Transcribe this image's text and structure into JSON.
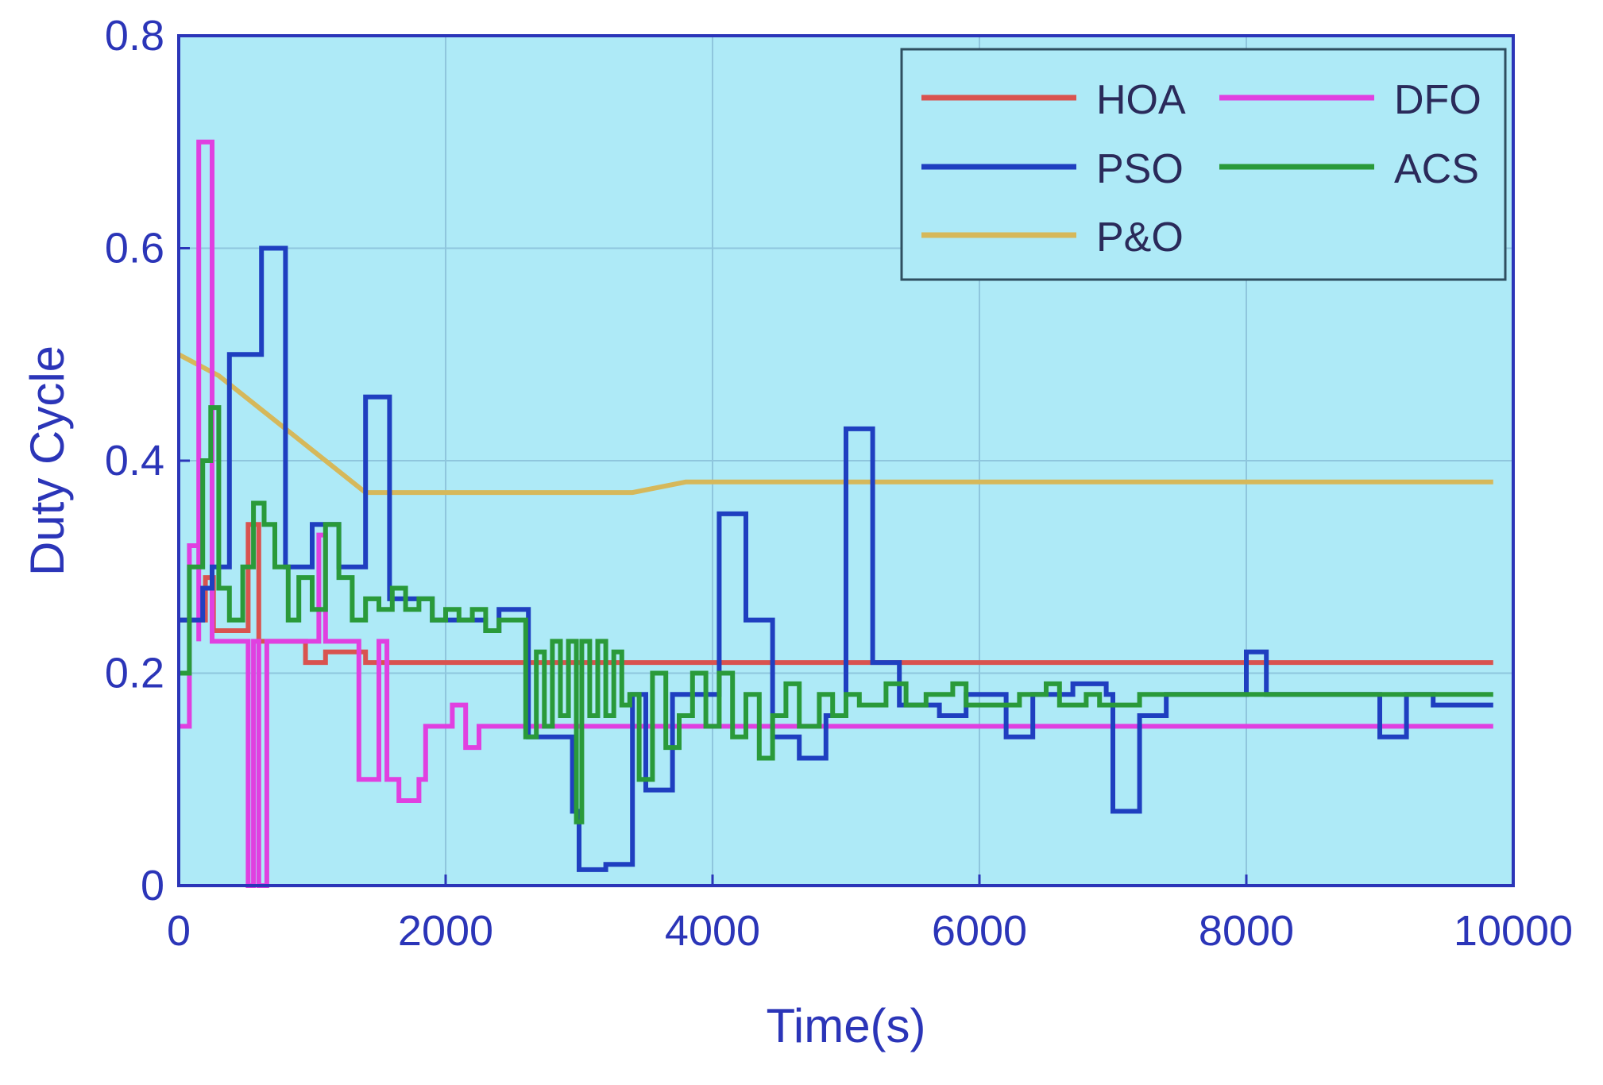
{
  "chart_data": {
    "type": "line",
    "title": "",
    "xlabel": "Time(s)",
    "ylabel": "Duty Cycle",
    "xlim": [
      0,
      10000
    ],
    "ylim": [
      0,
      0.8
    ],
    "xticks": [
      0,
      2000,
      4000,
      6000,
      8000,
      10000
    ],
    "xtick_labels": [
      "0",
      "2000",
      "4000",
      "6000",
      "8000",
      "10000"
    ],
    "yticks": [
      0,
      0.2,
      0.4,
      0.6,
      0.8
    ],
    "ytick_labels": [
      "0",
      "0.2",
      "0.4",
      "0.6",
      "0.8"
    ],
    "grid": true,
    "legend_position": "top-right",
    "background_color": "#aeeaf7",
    "axis_color": "#2b35b8",
    "series": [
      {
        "name": "HOA",
        "color": "#d9534f",
        "points": [
          [
            0,
            0.25
          ],
          [
            200,
            0.25
          ],
          [
            200,
            0.29
          ],
          [
            260,
            0.29
          ],
          [
            260,
            0.24
          ],
          [
            520,
            0.24
          ],
          [
            520,
            0.34
          ],
          [
            600,
            0.34
          ],
          [
            600,
            0.23
          ],
          [
            950,
            0.23
          ],
          [
            950,
            0.21
          ],
          [
            1100,
            0.21
          ],
          [
            1100,
            0.22
          ],
          [
            1400,
            0.22
          ],
          [
            1400,
            0.21
          ],
          [
            9850,
            0.21
          ]
        ]
      },
      {
        "name": "PSO",
        "color": "#1f3fc0",
        "points": [
          [
            0,
            0.25
          ],
          [
            180,
            0.25
          ],
          [
            180,
            0.28
          ],
          [
            250,
            0.28
          ],
          [
            250,
            0.3
          ],
          [
            380,
            0.3
          ],
          [
            380,
            0.5
          ],
          [
            620,
            0.5
          ],
          [
            620,
            0.6
          ],
          [
            800,
            0.6
          ],
          [
            800,
            0.3
          ],
          [
            1000,
            0.3
          ],
          [
            1000,
            0.34
          ],
          [
            1200,
            0.34
          ],
          [
            1200,
            0.3
          ],
          [
            1400,
            0.3
          ],
          [
            1400,
            0.46
          ],
          [
            1580,
            0.46
          ],
          [
            1580,
            0.27
          ],
          [
            1900,
            0.27
          ],
          [
            1900,
            0.25
          ],
          [
            2300,
            0.25
          ],
          [
            2300,
            0.24
          ],
          [
            2400,
            0.24
          ],
          [
            2400,
            0.26
          ],
          [
            2620,
            0.26
          ],
          [
            2620,
            0.14
          ],
          [
            2950,
            0.14
          ],
          [
            2950,
            0.07
          ],
          [
            3000,
            0.07
          ],
          [
            3000,
            0.015
          ],
          [
            3200,
            0.015
          ],
          [
            3200,
            0.02
          ],
          [
            3400,
            0.02
          ],
          [
            3400,
            0.18
          ],
          [
            3500,
            0.18
          ],
          [
            3500,
            0.09
          ],
          [
            3700,
            0.09
          ],
          [
            3700,
            0.18
          ],
          [
            4050,
            0.18
          ],
          [
            4050,
            0.35
          ],
          [
            4250,
            0.35
          ],
          [
            4250,
            0.25
          ],
          [
            4450,
            0.25
          ],
          [
            4450,
            0.14
          ],
          [
            4650,
            0.14
          ],
          [
            4650,
            0.12
          ],
          [
            4850,
            0.12
          ],
          [
            4850,
            0.16
          ],
          [
            5000,
            0.16
          ],
          [
            5000,
            0.43
          ],
          [
            5200,
            0.43
          ],
          [
            5200,
            0.21
          ],
          [
            5400,
            0.21
          ],
          [
            5400,
            0.17
          ],
          [
            5700,
            0.17
          ],
          [
            5700,
            0.16
          ],
          [
            5900,
            0.16
          ],
          [
            5900,
            0.18
          ],
          [
            6200,
            0.18
          ],
          [
            6200,
            0.14
          ],
          [
            6400,
            0.14
          ],
          [
            6400,
            0.18
          ],
          [
            6700,
            0.18
          ],
          [
            6700,
            0.19
          ],
          [
            6950,
            0.19
          ],
          [
            6950,
            0.18
          ],
          [
            7000,
            0.18
          ],
          [
            7000,
            0.07
          ],
          [
            7200,
            0.07
          ],
          [
            7200,
            0.16
          ],
          [
            7400,
            0.16
          ],
          [
            7400,
            0.18
          ],
          [
            8000,
            0.18
          ],
          [
            8000,
            0.22
          ],
          [
            8150,
            0.22
          ],
          [
            8150,
            0.18
          ],
          [
            9000,
            0.18
          ],
          [
            9000,
            0.14
          ],
          [
            9200,
            0.14
          ],
          [
            9200,
            0.18
          ],
          [
            9400,
            0.18
          ],
          [
            9400,
            0.17
          ],
          [
            9850,
            0.17
          ]
        ]
      },
      {
        "name": "P&O",
        "color": "#d6b85a",
        "points": [
          [
            0,
            0.5
          ],
          [
            300,
            0.48
          ],
          [
            600,
            0.45
          ],
          [
            1000,
            0.41
          ],
          [
            1400,
            0.37
          ],
          [
            2000,
            0.37
          ],
          [
            3400,
            0.37
          ],
          [
            3800,
            0.38
          ],
          [
            9850,
            0.38
          ]
        ]
      },
      {
        "name": "DFO",
        "color": "#e040e0",
        "points": [
          [
            0,
            0.15
          ],
          [
            80,
            0.15
          ],
          [
            80,
            0.32
          ],
          [
            150,
            0.32
          ],
          [
            150,
            0.23
          ],
          [
            150,
            0.7
          ],
          [
            250,
            0.7
          ],
          [
            250,
            0.23
          ],
          [
            520,
            0.23
          ],
          [
            520,
            0
          ],
          [
            560,
            0
          ],
          [
            560,
            0.23
          ],
          [
            600,
            0.23
          ],
          [
            600,
            0
          ],
          [
            660,
            0
          ],
          [
            660,
            0.23
          ],
          [
            1050,
            0.23
          ],
          [
            1050,
            0.33
          ],
          [
            1100,
            0.33
          ],
          [
            1100,
            0.23
          ],
          [
            1350,
            0.23
          ],
          [
            1350,
            0.1
          ],
          [
            1500,
            0.1
          ],
          [
            1500,
            0.23
          ],
          [
            1560,
            0.23
          ],
          [
            1560,
            0.1
          ],
          [
            1650,
            0.1
          ],
          [
            1650,
            0.08
          ],
          [
            1800,
            0.08
          ],
          [
            1800,
            0.1
          ],
          [
            1850,
            0.1
          ],
          [
            1850,
            0.15
          ],
          [
            2050,
            0.15
          ],
          [
            2050,
            0.17
          ],
          [
            2150,
            0.17
          ],
          [
            2150,
            0.13
          ],
          [
            2250,
            0.13
          ],
          [
            2250,
            0.15
          ],
          [
            9850,
            0.15
          ]
        ]
      },
      {
        "name": "ACS",
        "color": "#2a9a3a",
        "points": [
          [
            0,
            0.2
          ],
          [
            80,
            0.2
          ],
          [
            80,
            0.3
          ],
          [
            180,
            0.3
          ],
          [
            180,
            0.4
          ],
          [
            240,
            0.4
          ],
          [
            240,
            0.45
          ],
          [
            300,
            0.45
          ],
          [
            300,
            0.28
          ],
          [
            380,
            0.28
          ],
          [
            380,
            0.25
          ],
          [
            480,
            0.25
          ],
          [
            480,
            0.3
          ],
          [
            560,
            0.3
          ],
          [
            560,
            0.36
          ],
          [
            640,
            0.36
          ],
          [
            640,
            0.34
          ],
          [
            720,
            0.34
          ],
          [
            720,
            0.3
          ],
          [
            820,
            0.3
          ],
          [
            820,
            0.25
          ],
          [
            900,
            0.25
          ],
          [
            900,
            0.29
          ],
          [
            1000,
            0.29
          ],
          [
            1000,
            0.26
          ],
          [
            1100,
            0.26
          ],
          [
            1100,
            0.34
          ],
          [
            1200,
            0.34
          ],
          [
            1200,
            0.29
          ],
          [
            1300,
            0.29
          ],
          [
            1300,
            0.25
          ],
          [
            1400,
            0.25
          ],
          [
            1400,
            0.27
          ],
          [
            1500,
            0.27
          ],
          [
            1500,
            0.26
          ],
          [
            1600,
            0.26
          ],
          [
            1600,
            0.28
          ],
          [
            1700,
            0.28
          ],
          [
            1700,
            0.26
          ],
          [
            1800,
            0.26
          ],
          [
            1800,
            0.27
          ],
          [
            1900,
            0.27
          ],
          [
            1900,
            0.25
          ],
          [
            2000,
            0.25
          ],
          [
            2000,
            0.26
          ],
          [
            2100,
            0.26
          ],
          [
            2100,
            0.25
          ],
          [
            2200,
            0.25
          ],
          [
            2200,
            0.26
          ],
          [
            2300,
            0.26
          ],
          [
            2300,
            0.24
          ],
          [
            2400,
            0.24
          ],
          [
            2400,
            0.25
          ],
          [
            2600,
            0.25
          ],
          [
            2600,
            0.14
          ],
          [
            2680,
            0.14
          ],
          [
            2680,
            0.22
          ],
          [
            2740,
            0.22
          ],
          [
            2740,
            0.15
          ],
          [
            2800,
            0.15
          ],
          [
            2800,
            0.23
          ],
          [
            2860,
            0.23
          ],
          [
            2860,
            0.16
          ],
          [
            2920,
            0.16
          ],
          [
            2920,
            0.23
          ],
          [
            2980,
            0.23
          ],
          [
            2980,
            0.06
          ],
          [
            3020,
            0.06
          ],
          [
            3020,
            0.23
          ],
          [
            3080,
            0.23
          ],
          [
            3080,
            0.16
          ],
          [
            3140,
            0.16
          ],
          [
            3140,
            0.23
          ],
          [
            3200,
            0.23
          ],
          [
            3200,
            0.16
          ],
          [
            3260,
            0.16
          ],
          [
            3260,
            0.22
          ],
          [
            3320,
            0.22
          ],
          [
            3320,
            0.17
          ],
          [
            3380,
            0.17
          ],
          [
            3380,
            0.18
          ],
          [
            3450,
            0.18
          ],
          [
            3450,
            0.1
          ],
          [
            3550,
            0.1
          ],
          [
            3550,
            0.2
          ],
          [
            3650,
            0.2
          ],
          [
            3650,
            0.13
          ],
          [
            3750,
            0.13
          ],
          [
            3750,
            0.16
          ],
          [
            3850,
            0.16
          ],
          [
            3850,
            0.2
          ],
          [
            3950,
            0.2
          ],
          [
            3950,
            0.15
          ],
          [
            4050,
            0.15
          ],
          [
            4050,
            0.2
          ],
          [
            4150,
            0.2
          ],
          [
            4150,
            0.14
          ],
          [
            4250,
            0.14
          ],
          [
            4250,
            0.18
          ],
          [
            4350,
            0.18
          ],
          [
            4350,
            0.12
          ],
          [
            4450,
            0.12
          ],
          [
            4450,
            0.16
          ],
          [
            4550,
            0.16
          ],
          [
            4550,
            0.19
          ],
          [
            4650,
            0.19
          ],
          [
            4650,
            0.15
          ],
          [
            4800,
            0.15
          ],
          [
            4800,
            0.18
          ],
          [
            4900,
            0.18
          ],
          [
            4900,
            0.16
          ],
          [
            5000,
            0.16
          ],
          [
            5000,
            0.18
          ],
          [
            5100,
            0.18
          ],
          [
            5100,
            0.17
          ],
          [
            5300,
            0.17
          ],
          [
            5300,
            0.19
          ],
          [
            5450,
            0.19
          ],
          [
            5450,
            0.17
          ],
          [
            5600,
            0.17
          ],
          [
            5600,
            0.18
          ],
          [
            5800,
            0.18
          ],
          [
            5800,
            0.19
          ],
          [
            5900,
            0.19
          ],
          [
            5900,
            0.17
          ],
          [
            6300,
            0.17
          ],
          [
            6300,
            0.18
          ],
          [
            6500,
            0.18
          ],
          [
            6500,
            0.19
          ],
          [
            6600,
            0.19
          ],
          [
            6600,
            0.17
          ],
          [
            6800,
            0.17
          ],
          [
            6800,
            0.18
          ],
          [
            6900,
            0.18
          ],
          [
            6900,
            0.17
          ],
          [
            7200,
            0.17
          ],
          [
            7200,
            0.18
          ],
          [
            9850,
            0.18
          ]
        ]
      }
    ],
    "legend_order": [
      "HOA",
      "DFO",
      "PSO",
      "ACS",
      "P&O"
    ]
  }
}
